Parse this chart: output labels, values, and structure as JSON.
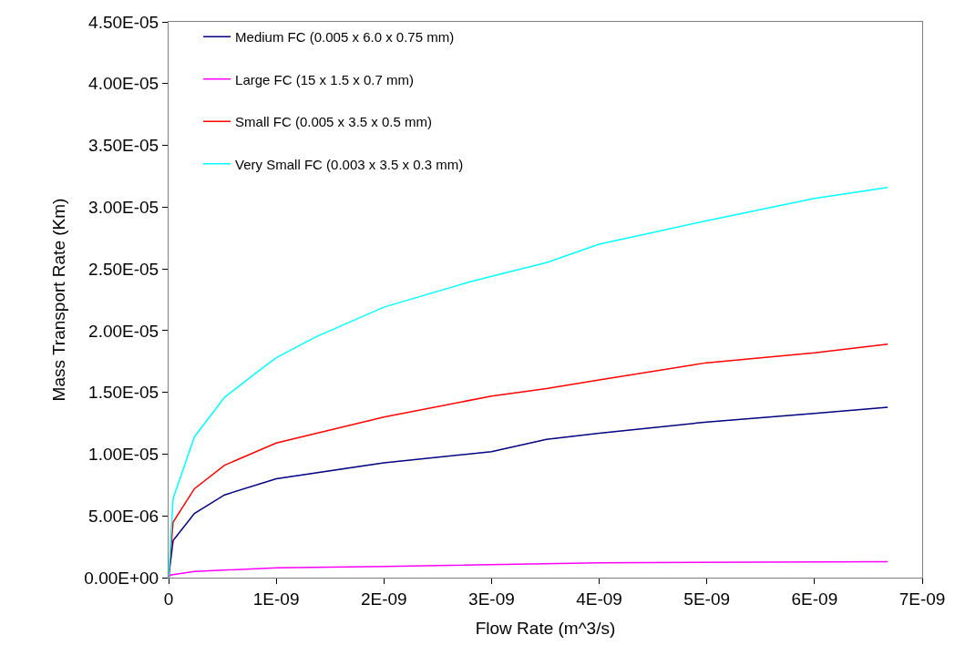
{
  "chart_data": {
    "type": "line",
    "xlabel": "Flow Rate (m^3/s)",
    "ylabel": "Mass Transport Rate (Km)",
    "series": [
      {
        "name": "Medium FC (0.005 x 6.0 x 0.75 mm)",
        "color": "#000080",
        "x": [
          0,
          4.2e-11,
          2.4e-10,
          5.2e-10,
          1e-09,
          2e-09,
          3e-09,
          3.51e-09,
          4e-09,
          5e-09,
          6e-09,
          6.68e-09
        ],
        "values": [
          0,
          3e-06,
          5.2e-06,
          6.7e-06,
          8e-06,
          9.3e-06,
          1.02e-05,
          1.12e-05,
          1.17e-05,
          1.26e-05,
          1.33e-05,
          1.38e-05
        ]
      },
      {
        "name": "Large FC (15 x 1.5 x 0.7 mm)",
        "color": "#ff00ff",
        "x": [
          0,
          1.4e-11,
          2.4e-10,
          1e-09,
          2e-09,
          4e-09,
          6.68e-09
        ],
        "values": [
          0,
          2e-07,
          5e-07,
          8e-07,
          9e-07,
          1.2e-06,
          1.3e-06
        ]
      },
      {
        "name": "Small FC (0.005 x 3.5 x 0.5 mm)",
        "color": "#ff0000",
        "x": [
          0,
          4.2e-11,
          2.4e-10,
          5.2e-10,
          1e-09,
          2e-09,
          3e-09,
          3.51e-09,
          4e-09,
          5e-09,
          6e-09,
          6.68e-09
        ],
        "values": [
          0,
          4.5e-06,
          7.2e-06,
          9.1e-06,
          1.09e-05,
          1.3e-05,
          1.47e-05,
          1.53e-05,
          1.6e-05,
          1.74e-05,
          1.82e-05,
          1.89e-05
        ]
      },
      {
        "name": "Very Small FC (0.003 x 3.5 x 0.3 mm)",
        "color": "#00ffff",
        "x": [
          0,
          4.2e-11,
          2.4e-10,
          5.2e-10,
          8e-10,
          1e-09,
          1.37e-09,
          2e-09,
          2.78e-09,
          3e-09,
          3.51e-09,
          4e-09,
          5e-09,
          6e-09,
          6.68e-09
        ],
        "values": [
          0,
          6.4e-06,
          1.14e-05,
          1.46e-05,
          1.65e-05,
          1.78e-05,
          1.95e-05,
          2.19e-05,
          2.39e-05,
          2.44e-05,
          2.55e-05,
          2.7e-05,
          2.89e-05,
          3.07e-05,
          3.16e-05
        ]
      }
    ],
    "xlim": [
      0,
      7e-09
    ],
    "xticks": [
      0,
      {
        "value": 1e-09,
        "label": "1E-09"
      },
      {
        "value": 2e-09,
        "label": "2E-09"
      },
      {
        "value": 3e-09,
        "label": "3E-09"
      },
      {
        "value": 4e-09,
        "label": "4E-09"
      },
      {
        "value": 5e-09,
        "label": "5E-09"
      },
      {
        "value": 6e-09,
        "label": "6E-09"
      },
      {
        "value": 7e-09,
        "label": "7E-09"
      }
    ],
    "ylim": [
      0,
      4.5e-05
    ],
    "yticks": [
      {
        "value": 0,
        "label": "0.00E+00"
      },
      {
        "value": 5e-06,
        "label": "5.00E-06"
      },
      {
        "value": 1e-05,
        "label": "1.00E-05"
      },
      {
        "value": 1.5e-05,
        "label": "1.50E-05"
      },
      {
        "value": 2e-05,
        "label": "2.00E-05"
      },
      {
        "value": 2.5e-05,
        "label": "2.50E-05"
      },
      {
        "value": 3e-05,
        "label": "3.00E-05"
      },
      {
        "value": 3.5e-05,
        "label": "3.50E-05"
      },
      {
        "value": 4e-05,
        "label": "4.00E-05"
      },
      {
        "value": 4.5e-05,
        "label": "4.50E-05"
      }
    ],
    "legend": "top left",
    "marker": "none",
    "line_style": "solid"
  }
}
